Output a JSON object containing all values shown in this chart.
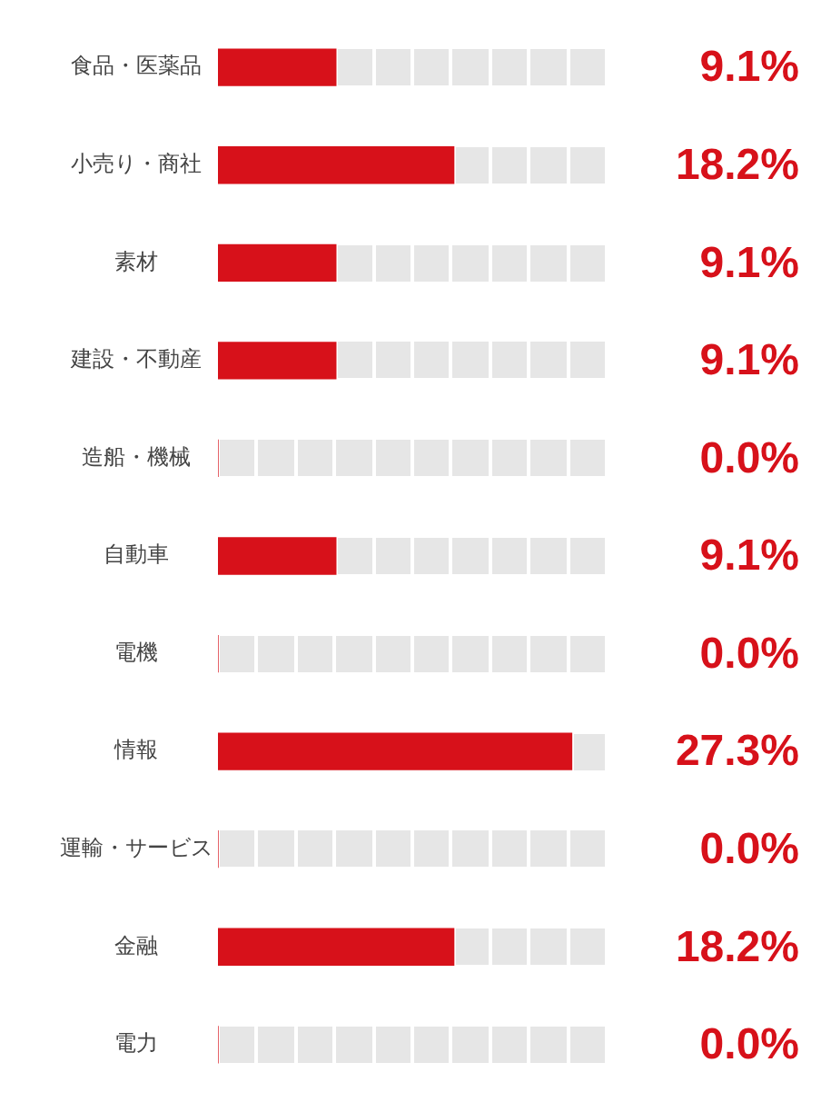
{
  "chart_data": {
    "type": "bar",
    "orientation": "horizontal",
    "categories": [
      "食品・医薬品",
      "小売り・商社",
      "素材",
      "建設・不動産",
      "造船・機械",
      "自動車",
      "電機",
      "情報",
      "運輸・サービス",
      "金融",
      "電力"
    ],
    "values": [
      9.1,
      18.2,
      9.1,
      9.1,
      0.0,
      9.1,
      0.0,
      27.3,
      0.0,
      18.2,
      0.0
    ],
    "value_labels": [
      "9.1%",
      "18.2%",
      "9.1%",
      "9.1%",
      "0.0%",
      "9.1%",
      "0.0%",
      "27.3%",
      "0.0%",
      "18.2%",
      "0.0%"
    ],
    "color": "#d7111a",
    "tick_labels": "y",
    "legend": false
  }
}
